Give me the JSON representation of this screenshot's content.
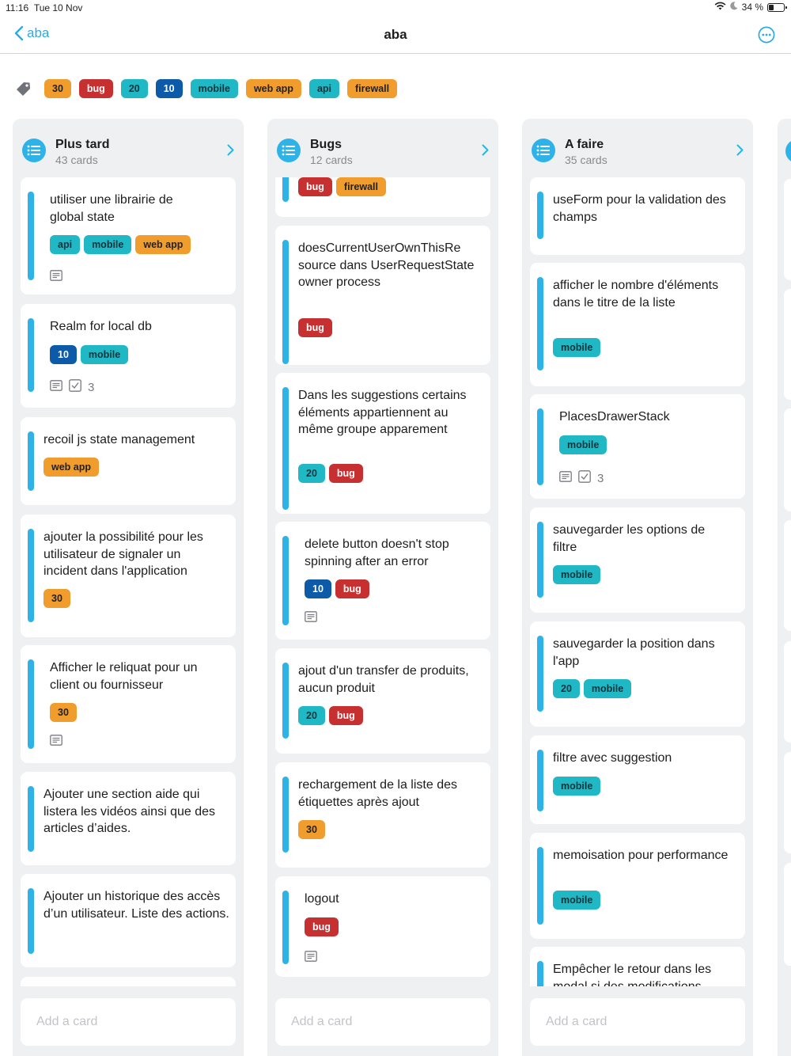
{
  "status": {
    "time": "11:16",
    "date": "Tue 10 Nov",
    "battery": "34 %",
    "battery_level": 0.34
  },
  "nav": {
    "back_label": "aba",
    "title": "aba"
  },
  "filter_labels": [
    {
      "label": "30",
      "color": "orange"
    },
    {
      "label": "bug",
      "color": "red"
    },
    {
      "label": "20",
      "color": "teal"
    },
    {
      "label": "10",
      "color": "blue"
    },
    {
      "label": "mobile",
      "color": "teal"
    },
    {
      "label": "web app",
      "color": "orange"
    },
    {
      "label": "api",
      "color": "teal"
    },
    {
      "label": "firewall",
      "color": "orange"
    }
  ],
  "colors": {
    "accent": "#2db3e8",
    "orange": "#f09d2e",
    "red": "#c73030",
    "teal": "#21b8c5",
    "blue": "#0d5aa8"
  },
  "columns": [
    {
      "title": "Plus tard",
      "count": "43 cards",
      "add_label": "Add a card",
      "cards": [
        {
          "title": "utiliser une librairie de global state",
          "labels": [
            {
              "label": "api",
              "color": "teal"
            },
            {
              "label": "mobile",
              "color": "teal"
            },
            {
              "label": "web app",
              "color": "orange"
            }
          ],
          "description": true
        },
        {
          "title": "Realm for local db",
          "labels": [
            {
              "label": "10",
              "color": "blue"
            },
            {
              "label": "mobile",
              "color": "teal"
            }
          ],
          "description": true,
          "checklist": "3"
        },
        {
          "title": "recoil js state management",
          "labels": [
            {
              "label": "web app",
              "color": "orange"
            }
          ]
        },
        {
          "title": "ajouter la possibilité pour les utilisateur de signaler un incident dans l'application",
          "labels": [
            {
              "label": "30",
              "color": "orange"
            }
          ]
        },
        {
          "title": "Afficher le reliquat pour un client ou fournisseur",
          "labels": [
            {
              "label": "30",
              "color": "orange"
            }
          ],
          "description": true
        },
        {
          "title": "Ajouter une section aide qui listera les vidéos ainsi que des articles d’aides.",
          "labels": []
        },
        {
          "title": "Ajouter un historique des accès d’un utilisateur. Liste des actions.",
          "labels": []
        }
      ]
    },
    {
      "title": "Bugs",
      "count": "12 cards",
      "add_label": "Add a card",
      "cards": [
        {
          "title": "",
          "labels": [
            {
              "label": "bug",
              "color": "red"
            },
            {
              "label": "firewall",
              "color": "orange"
            }
          ]
        },
        {
          "title": "doesCurrentUserOwnThisRe source dans UserRequestState owner process",
          "labels": [
            {
              "label": "bug",
              "color": "red"
            }
          ]
        },
        {
          "title": "Dans les suggestions certains éléments appartiennent au même groupe apparement",
          "labels": [
            {
              "label": "20",
              "color": "teal"
            },
            {
              "label": "bug",
              "color": "red"
            }
          ]
        },
        {
          "title": "delete button doesn't stop spinning after an error",
          "labels": [
            {
              "label": "10",
              "color": "blue"
            },
            {
              "label": "bug",
              "color": "red"
            }
          ],
          "description": true
        },
        {
          "title": "ajout d'un transfer de produits, aucun produit",
          "labels": [
            {
              "label": "20",
              "color": "teal"
            },
            {
              "label": "bug",
              "color": "red"
            }
          ]
        },
        {
          "title": "rechargement de la liste des étiquettes après ajout",
          "labels": [
            {
              "label": "30",
              "color": "orange"
            }
          ]
        },
        {
          "title": "logout",
          "labels": [
            {
              "label": "bug",
              "color": "red"
            }
          ],
          "description": true
        }
      ]
    },
    {
      "title": "A faire",
      "count": "35 cards",
      "add_label": "Add a card",
      "cards": [
        {
          "title": "useForm pour la validation des champs",
          "labels": []
        },
        {
          "title": "afficher le nombre d'éléments dans le titre de la liste",
          "labels": [
            {
              "label": "mobile",
              "color": "teal"
            }
          ]
        },
        {
          "title": "PlacesDrawerStack",
          "labels": [
            {
              "label": "mobile",
              "color": "teal"
            }
          ],
          "description": true,
          "checklist": "3"
        },
        {
          "title": "sauvegarder les options de filtre",
          "labels": [
            {
              "label": "mobile",
              "color": "teal"
            }
          ]
        },
        {
          "title": "sauvegarder la position dans l'app",
          "labels": [
            {
              "label": "20",
              "color": "teal"
            },
            {
              "label": "mobile",
              "color": "teal"
            }
          ]
        },
        {
          "title": "filtre avec suggestion",
          "labels": [
            {
              "label": "mobile",
              "color": "teal"
            }
          ]
        },
        {
          "title": "memoisation pour performance",
          "labels": [
            {
              "label": "mobile",
              "color": "teal"
            }
          ]
        },
        {
          "title": "Empêcher le retour dans les modal si des modifications",
          "labels": []
        }
      ]
    }
  ]
}
